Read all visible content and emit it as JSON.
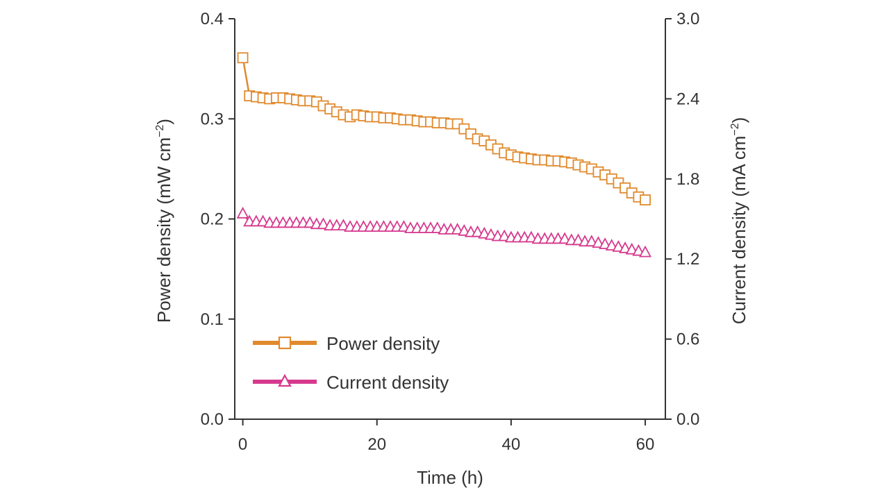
{
  "chart_data": {
    "type": "line",
    "xlabel": "Time (h)",
    "ylabel_left": "Power density (mW cm",
    "ylabel_left_sup": "−2",
    "ylabel_left_end": ")",
    "ylabel_right": "Current density (mA cm",
    "ylabel_right_sup": "−2",
    "ylabel_right_end": ")",
    "xlim": [
      -1.2,
      63
    ],
    "xticks": [
      0,
      20,
      40,
      60
    ],
    "ylim_left": [
      0.0,
      0.4
    ],
    "yticks_left": [
      "0.0",
      "0.1",
      "0.2",
      "0.3",
      "0.4"
    ],
    "ylim_right": [
      0.0,
      3.0
    ],
    "yticks_right": [
      "0.0",
      "0.6",
      "1.2",
      "1.8",
      "2.4",
      "3.0"
    ],
    "legend_position": "bottom-left",
    "x": [
      0,
      1,
      2,
      3,
      4,
      5,
      6,
      7,
      8,
      9,
      10,
      11,
      12,
      13,
      14,
      15,
      16,
      17,
      18,
      19,
      20,
      21,
      22,
      23,
      24,
      25,
      26,
      27,
      28,
      29,
      30,
      31,
      32,
      33,
      34,
      35,
      36,
      37,
      38,
      39,
      40,
      41,
      42,
      43,
      44,
      45,
      46,
      47,
      48,
      49,
      50,
      51,
      52,
      53,
      54,
      55,
      56,
      57,
      58,
      59,
      60
    ],
    "series": [
      {
        "name": "Power density",
        "axis": "left",
        "marker": "square",
        "color": "#E08A2E",
        "values": [
          0.361,
          0.323,
          0.322,
          0.321,
          0.32,
          0.321,
          0.321,
          0.32,
          0.319,
          0.318,
          0.318,
          0.317,
          0.313,
          0.31,
          0.307,
          0.304,
          0.302,
          0.304,
          0.303,
          0.302,
          0.302,
          0.301,
          0.301,
          0.3,
          0.299,
          0.299,
          0.298,
          0.297,
          0.297,
          0.296,
          0.296,
          0.295,
          0.295,
          0.29,
          0.285,
          0.28,
          0.278,
          0.274,
          0.27,
          0.266,
          0.264,
          0.262,
          0.261,
          0.26,
          0.259,
          0.259,
          0.258,
          0.258,
          0.257,
          0.256,
          0.254,
          0.252,
          0.25,
          0.247,
          0.244,
          0.24,
          0.236,
          0.231,
          0.226,
          0.222,
          0.219
        ]
      },
      {
        "name": "Current density",
        "axis": "right",
        "marker": "triangle",
        "color": "#D63A8E",
        "values": [
          1.54,
          1.48,
          1.48,
          1.48,
          1.47,
          1.47,
          1.47,
          1.47,
          1.47,
          1.47,
          1.47,
          1.46,
          1.46,
          1.45,
          1.45,
          1.45,
          1.44,
          1.44,
          1.44,
          1.44,
          1.44,
          1.44,
          1.44,
          1.44,
          1.44,
          1.43,
          1.43,
          1.43,
          1.43,
          1.43,
          1.42,
          1.42,
          1.42,
          1.41,
          1.4,
          1.4,
          1.39,
          1.38,
          1.37,
          1.37,
          1.36,
          1.36,
          1.36,
          1.36,
          1.35,
          1.35,
          1.35,
          1.35,
          1.35,
          1.34,
          1.34,
          1.33,
          1.33,
          1.32,
          1.31,
          1.3,
          1.29,
          1.28,
          1.27,
          1.26,
          1.25
        ]
      }
    ]
  }
}
